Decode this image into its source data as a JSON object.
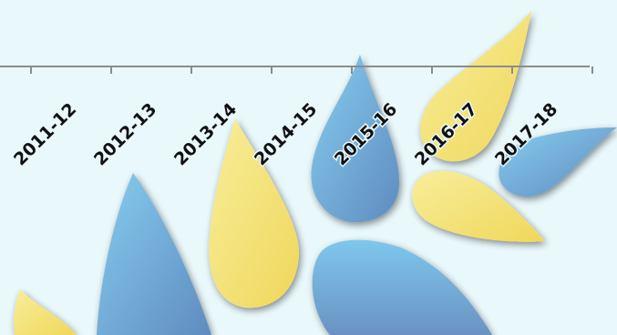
{
  "chart_data": {
    "type": "line",
    "categories": [
      "2011-12",
      "2012-13",
      "2013-14",
      "2014-15",
      "2015-16",
      "2016-17",
      "2017-18"
    ],
    "series": [],
    "title": "",
    "xlabel": "",
    "ylabel": "",
    "grid": false,
    "axis_color": "#8c8c8c"
  },
  "background": {
    "fill": "#e9f8fb",
    "decoration": "blue and yellow teardrop petals",
    "colors": {
      "blue_light": "#7cc4ea",
      "blue_dark": "#5f8bbf",
      "yellow_light": "#f6ea8c",
      "yellow_dark": "#f0d95f"
    }
  }
}
